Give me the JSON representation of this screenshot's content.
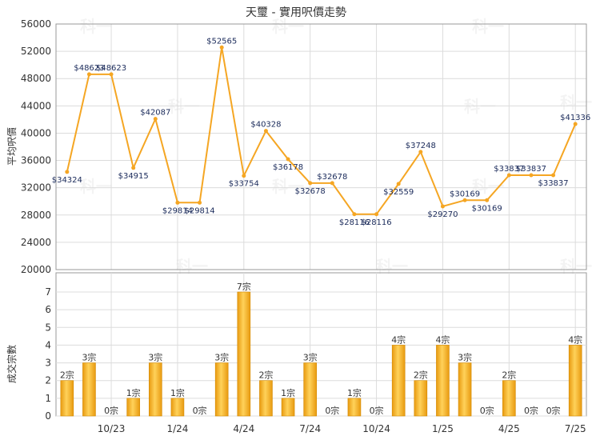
{
  "chart_data": [
    {
      "type": "line",
      "title": "天璽 - 實用呎價走勢",
      "ylabel": "平均呎價",
      "ylim": [
        20000,
        56000
      ],
      "yticks": [
        20000,
        24000,
        28000,
        32000,
        36000,
        40000,
        44000,
        48000,
        52000,
        56000
      ],
      "color": "#f5a623",
      "grid": true,
      "values": [
        34324,
        48623,
        48623,
        34915,
        42087,
        29814,
        29814,
        52565,
        33754,
        40328,
        36178,
        32678,
        32678,
        28116,
        28116,
        32559,
        37248,
        29270,
        30169,
        30169,
        33837,
        33837,
        33837,
        41336
      ],
      "labels": [
        "$34324",
        "$48623",
        "$48623",
        "$34915",
        "$42087",
        "$29814",
        "$29814",
        "$52565",
        "$33754",
        "$40328",
        "$36178",
        "$32678",
        "$32678",
        "$28116",
        "$28116",
        "$32559",
        "$37248",
        "$29270",
        "$30169",
        "$30169",
        "$33837",
        "$33837",
        "$33837",
        "$41336"
      ],
      "watermark": "科一"
    },
    {
      "type": "bar",
      "ylabel": "成交宗數",
      "ylim": [
        0,
        7
      ],
      "yticks": [
        0,
        1,
        2,
        3,
        4,
        5,
        6,
        7
      ],
      "color": "#f2b01e",
      "grid": true,
      "values": [
        2,
        3,
        0,
        1,
        3,
        1,
        0,
        3,
        7,
        2,
        1,
        3,
        0,
        1,
        0,
        4,
        2,
        4,
        3,
        0,
        2,
        0,
        0,
        4
      ],
      "labels": [
        "2宗",
        "3宗",
        "0宗",
        "1宗",
        "3宗",
        "1宗",
        "0宗",
        "3宗",
        "7宗",
        "2宗",
        "1宗",
        "3宗",
        "0宗",
        "1宗",
        "0宗",
        "4宗",
        "2宗",
        "4宗",
        "3宗",
        "0宗",
        "2宗",
        "0宗",
        "0宗",
        "4宗"
      ],
      "x_tick_labels": [
        {
          "index": 2,
          "label": "10/23"
        },
        {
          "index": 5,
          "label": "1/24"
        },
        {
          "index": 8,
          "label": "4/24"
        },
        {
          "index": 11,
          "label": "7/24"
        },
        {
          "index": 14,
          "label": "10/24"
        },
        {
          "index": 17,
          "label": "1/25"
        },
        {
          "index": 20,
          "label": "4/25"
        },
        {
          "index": 23,
          "label": "7/25"
        }
      ]
    }
  ]
}
